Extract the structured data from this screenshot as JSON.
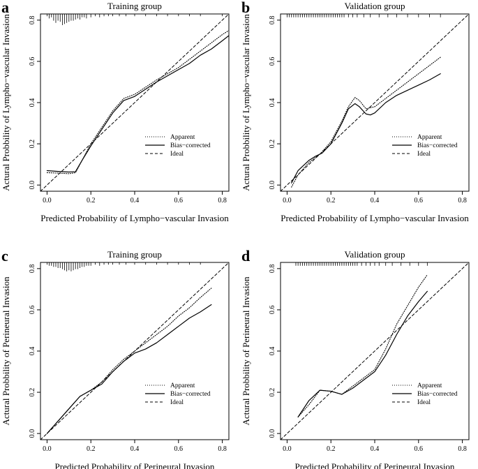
{
  "chart_data": [
    {
      "type": "line",
      "panel": "a",
      "title": "Training group",
      "xlabel": "Predicted Probability of Lympho−vascular Invasion",
      "ylabel": "Actural Probbility of Lympho−vascular Invasion",
      "xlim": [
        -0.03,
        0.83
      ],
      "ylim": [
        -0.03,
        0.83
      ],
      "xticks": [
        0.0,
        0.2,
        0.4,
        0.6,
        0.8
      ],
      "yticks": [
        0.0,
        0.2,
        0.4,
        0.6,
        0.8
      ],
      "xtick_labels": [
        "0.0",
        "0.2",
        "0.4",
        "0.6",
        "0.8"
      ],
      "ytick_labels": [
        "0.0",
        "0.2",
        "0.4",
        "0.6",
        "0.8"
      ],
      "legend": [
        "Apparent",
        "Bias−corrected",
        "Ideal"
      ],
      "legend_position": "bottom-right",
      "rug": {
        "side": "top",
        "ticks": [
          [
            0.0,
            2
          ],
          [
            0.01,
            4
          ],
          [
            0.02,
            3
          ],
          [
            0.03,
            6
          ],
          [
            0.04,
            8
          ],
          [
            0.05,
            6
          ],
          [
            0.06,
            7
          ],
          [
            0.07,
            10
          ],
          [
            0.08,
            9
          ],
          [
            0.09,
            8
          ],
          [
            0.1,
            7
          ],
          [
            0.11,
            6
          ],
          [
            0.12,
            6
          ],
          [
            0.13,
            5
          ],
          [
            0.14,
            4
          ],
          [
            0.15,
            5
          ],
          [
            0.16,
            3
          ],
          [
            0.17,
            3
          ],
          [
            0.18,
            4
          ],
          [
            0.2,
            3
          ],
          [
            0.22,
            2
          ],
          [
            0.24,
            3
          ],
          [
            0.26,
            2
          ],
          [
            0.28,
            2
          ],
          [
            0.3,
            2
          ],
          [
            0.33,
            2
          ],
          [
            0.36,
            2
          ],
          [
            0.4,
            2
          ],
          [
            0.45,
            2
          ],
          [
            0.5,
            2
          ],
          [
            0.55,
            2
          ],
          [
            0.6,
            2
          ],
          [
            0.65,
            2
          ],
          [
            0.7,
            2
          ],
          [
            0.8,
            2
          ]
        ]
      },
      "series": [
        {
          "name": "Apparent",
          "style": "dotted",
          "x": [
            0.0,
            0.05,
            0.1,
            0.13,
            0.16,
            0.2,
            0.25,
            0.3,
            0.35,
            0.4,
            0.45,
            0.5,
            0.55,
            0.6,
            0.65,
            0.7,
            0.75,
            0.8,
            0.83
          ],
          "y": [
            0.06,
            0.058,
            0.055,
            0.06,
            0.12,
            0.2,
            0.28,
            0.36,
            0.42,
            0.44,
            0.475,
            0.51,
            0.54,
            0.57,
            0.61,
            0.65,
            0.69,
            0.73,
            0.75
          ]
        },
        {
          "name": "Bias−corrected",
          "style": "solid",
          "x": [
            0.0,
            0.05,
            0.1,
            0.13,
            0.16,
            0.2,
            0.25,
            0.3,
            0.35,
            0.4,
            0.45,
            0.5,
            0.55,
            0.6,
            0.65,
            0.7,
            0.75,
            0.8,
            0.83
          ],
          "y": [
            0.07,
            0.066,
            0.063,
            0.065,
            0.12,
            0.19,
            0.27,
            0.35,
            0.41,
            0.43,
            0.465,
            0.5,
            0.53,
            0.56,
            0.59,
            0.63,
            0.66,
            0.7,
            0.725
          ]
        },
        {
          "name": "Ideal",
          "style": "dashed",
          "x": [
            -0.03,
            0.83
          ],
          "y": [
            -0.03,
            0.83
          ]
        }
      ]
    },
    {
      "type": "line",
      "panel": "b",
      "title": "Validation group",
      "xlabel": "Predicted Probability of Lympho−vascular Invasion",
      "ylabel": "Actural Probbility of Lympho−vascular Invasion",
      "xlim": [
        -0.03,
        0.83
      ],
      "ylim": [
        -0.03,
        0.83
      ],
      "xticks": [
        0.0,
        0.2,
        0.4,
        0.6,
        0.8
      ],
      "yticks": [
        0.0,
        0.2,
        0.4,
        0.6,
        0.8
      ],
      "xtick_labels": [
        "0.0",
        "0.2",
        "0.4",
        "0.6",
        "0.8"
      ],
      "ytick_labels": [
        "0.0",
        "0.2",
        "0.4",
        "0.6",
        "0.8"
      ],
      "legend": [
        "Apparent",
        "Bias−corrected",
        "Ideal"
      ],
      "legend_position": "bottom-right",
      "rug": {
        "side": "top",
        "ticks": [
          [
            0.0,
            3
          ],
          [
            0.01,
            3
          ],
          [
            0.02,
            3
          ],
          [
            0.03,
            3
          ],
          [
            0.04,
            3
          ],
          [
            0.05,
            3
          ],
          [
            0.06,
            3
          ],
          [
            0.07,
            3
          ],
          [
            0.08,
            3
          ],
          [
            0.09,
            3
          ],
          [
            0.1,
            3
          ],
          [
            0.11,
            3
          ],
          [
            0.12,
            3
          ],
          [
            0.13,
            3
          ],
          [
            0.14,
            3
          ],
          [
            0.15,
            3
          ],
          [
            0.16,
            3
          ],
          [
            0.17,
            3
          ],
          [
            0.18,
            3
          ],
          [
            0.19,
            3
          ],
          [
            0.2,
            3
          ],
          [
            0.21,
            3
          ],
          [
            0.22,
            3
          ],
          [
            0.23,
            3
          ],
          [
            0.24,
            3
          ],
          [
            0.25,
            3
          ],
          [
            0.26,
            3
          ],
          [
            0.28,
            3
          ],
          [
            0.3,
            3
          ],
          [
            0.32,
            3
          ],
          [
            0.35,
            3
          ],
          [
            0.38,
            3
          ],
          [
            0.42,
            3
          ],
          [
            0.46,
            3
          ],
          [
            0.5,
            3
          ],
          [
            0.55,
            3
          ],
          [
            0.6,
            3
          ],
          [
            0.65,
            3
          ],
          [
            0.7,
            3
          ]
        ]
      },
      "series": [
        {
          "name": "Apparent",
          "style": "dotted",
          "x": [
            0.02,
            0.05,
            0.1,
            0.15,
            0.2,
            0.25,
            0.28,
            0.31,
            0.33,
            0.36,
            0.4,
            0.45,
            0.5,
            0.55,
            0.6,
            0.65,
            0.7
          ],
          "y": [
            -0.01,
            0.05,
            0.11,
            0.15,
            0.21,
            0.31,
            0.38,
            0.425,
            0.41,
            0.37,
            0.38,
            0.42,
            0.46,
            0.5,
            0.54,
            0.58,
            0.62
          ]
        },
        {
          "name": "Bias−corrected",
          "style": "solid",
          "x": [
            0.02,
            0.05,
            0.1,
            0.13,
            0.16,
            0.2,
            0.25,
            0.28,
            0.31,
            0.33,
            0.36,
            0.38,
            0.4,
            0.45,
            0.5,
            0.55,
            0.6,
            0.65,
            0.7
          ],
          "y": [
            0.01,
            0.07,
            0.12,
            0.14,
            0.155,
            0.2,
            0.3,
            0.37,
            0.395,
            0.38,
            0.345,
            0.34,
            0.35,
            0.4,
            0.435,
            0.46,
            0.485,
            0.51,
            0.54
          ]
        },
        {
          "name": "Ideal",
          "style": "dashed",
          "x": [
            -0.03,
            0.83
          ],
          "y": [
            -0.03,
            0.83
          ]
        }
      ]
    },
    {
      "type": "line",
      "panel": "c",
      "title": "Training group",
      "xlabel": "Predicted Probability of Perineural Invasion",
      "ylabel": "Actural Probbility of Perineural Invasion",
      "xlim": [
        -0.03,
        0.83
      ],
      "ylim": [
        -0.03,
        0.83
      ],
      "xticks": [
        0.0,
        0.2,
        0.4,
        0.6,
        0.8
      ],
      "yticks": [
        0.0,
        0.2,
        0.4,
        0.6,
        0.8
      ],
      "xtick_labels": [
        "0.0",
        "0.2",
        "0.4",
        "0.6",
        "0.8"
      ],
      "ytick_labels": [
        "0.0",
        "0.2",
        "0.4",
        "0.6",
        "0.8"
      ],
      "legend": [
        "Apparent",
        "Bias−corrected",
        "Ideal"
      ],
      "legend_position": "bottom-right",
      "rug": {
        "side": "top",
        "ticks": [
          [
            0.0,
            2
          ],
          [
            0.01,
            3
          ],
          [
            0.02,
            3
          ],
          [
            0.03,
            4
          ],
          [
            0.04,
            4
          ],
          [
            0.05,
            5
          ],
          [
            0.06,
            5
          ],
          [
            0.07,
            6
          ],
          [
            0.08,
            7
          ],
          [
            0.09,
            8
          ],
          [
            0.1,
            7
          ],
          [
            0.11,
            8
          ],
          [
            0.12,
            7
          ],
          [
            0.13,
            6
          ],
          [
            0.14,
            6
          ],
          [
            0.15,
            5
          ],
          [
            0.16,
            4
          ],
          [
            0.17,
            4
          ],
          [
            0.18,
            3
          ],
          [
            0.19,
            3
          ],
          [
            0.2,
            3
          ],
          [
            0.22,
            2
          ],
          [
            0.24,
            3
          ],
          [
            0.26,
            2
          ],
          [
            0.28,
            2
          ],
          [
            0.3,
            2
          ],
          [
            0.33,
            2
          ],
          [
            0.36,
            2
          ],
          [
            0.4,
            2
          ],
          [
            0.45,
            2
          ],
          [
            0.5,
            2
          ],
          [
            0.55,
            2
          ],
          [
            0.6,
            2
          ],
          [
            0.65,
            2
          ],
          [
            0.7,
            2
          ]
        ]
      },
      "series": [
        {
          "name": "Apparent",
          "style": "dotted",
          "x": [
            0.0,
            0.05,
            0.1,
            0.15,
            0.2,
            0.25,
            0.3,
            0.35,
            0.4,
            0.45,
            0.5,
            0.55,
            0.6,
            0.65,
            0.7,
            0.75
          ],
          "y": [
            0.0,
            0.06,
            0.12,
            0.18,
            0.21,
            0.25,
            0.31,
            0.36,
            0.4,
            0.44,
            0.48,
            0.52,
            0.57,
            0.61,
            0.66,
            0.705
          ]
        },
        {
          "name": "Bias−corrected",
          "style": "solid",
          "x": [
            0.0,
            0.05,
            0.1,
            0.15,
            0.2,
            0.25,
            0.3,
            0.35,
            0.4,
            0.45,
            0.5,
            0.55,
            0.6,
            0.65,
            0.7,
            0.75
          ],
          "y": [
            0.0,
            0.06,
            0.12,
            0.18,
            0.21,
            0.24,
            0.3,
            0.35,
            0.39,
            0.41,
            0.44,
            0.48,
            0.52,
            0.56,
            0.59,
            0.625
          ]
        },
        {
          "name": "Ideal",
          "style": "dashed",
          "x": [
            -0.03,
            0.83
          ],
          "y": [
            -0.03,
            0.83
          ]
        }
      ]
    },
    {
      "type": "line",
      "panel": "d",
      "title": "Validation group",
      "xlabel": "Predicted Probability of Perineural Invasion",
      "ylabel": "Actural Probbility of Perineural Invasion",
      "xlim": [
        -0.03,
        0.83
      ],
      "ylim": [
        -0.03,
        0.83
      ],
      "xticks": [
        0.0,
        0.2,
        0.4,
        0.6,
        0.8
      ],
      "yticks": [
        0.0,
        0.2,
        0.4,
        0.6,
        0.8
      ],
      "xtick_labels": [
        "0.0",
        "0.2",
        "0.4",
        "0.6",
        "0.8"
      ],
      "ytick_labels": [
        "0.0",
        "0.2",
        "0.4",
        "0.6",
        "0.8"
      ],
      "legend": [
        "Apparent",
        "Bias−corrected",
        "Ideal"
      ],
      "legend_position": "bottom-right",
      "rug": {
        "side": "top",
        "ticks": [
          [
            0.04,
            3
          ],
          [
            0.05,
            3
          ],
          [
            0.06,
            3
          ],
          [
            0.07,
            3
          ],
          [
            0.08,
            3
          ],
          [
            0.09,
            3
          ],
          [
            0.1,
            3
          ],
          [
            0.11,
            3
          ],
          [
            0.12,
            3
          ],
          [
            0.13,
            3
          ],
          [
            0.14,
            3
          ],
          [
            0.15,
            3
          ],
          [
            0.16,
            3
          ],
          [
            0.17,
            3
          ],
          [
            0.18,
            3
          ],
          [
            0.19,
            3
          ],
          [
            0.2,
            3
          ],
          [
            0.21,
            3
          ],
          [
            0.22,
            3
          ],
          [
            0.23,
            3
          ],
          [
            0.24,
            3
          ],
          [
            0.25,
            3
          ],
          [
            0.26,
            3
          ],
          [
            0.27,
            3
          ],
          [
            0.28,
            3
          ],
          [
            0.29,
            3
          ],
          [
            0.3,
            3
          ],
          [
            0.31,
            3
          ],
          [
            0.32,
            3
          ],
          [
            0.34,
            3
          ],
          [
            0.36,
            3
          ],
          [
            0.38,
            3
          ],
          [
            0.4,
            3
          ],
          [
            0.42,
            3
          ],
          [
            0.45,
            3
          ],
          [
            0.48,
            3
          ],
          [
            0.52,
            3
          ],
          [
            0.56,
            3
          ],
          [
            0.6,
            3
          ],
          [
            0.64,
            3
          ]
        ]
      },
      "series": [
        {
          "name": "Apparent",
          "style": "dotted",
          "x": [
            0.05,
            0.1,
            0.15,
            0.2,
            0.25,
            0.3,
            0.35,
            0.4,
            0.45,
            0.5,
            0.55,
            0.6,
            0.64
          ],
          "y": [
            0.08,
            0.14,
            0.21,
            0.205,
            0.19,
            0.23,
            0.27,
            0.31,
            0.41,
            0.53,
            0.62,
            0.71,
            0.77
          ]
        },
        {
          "name": "Bias−corrected",
          "style": "solid",
          "x": [
            0.05,
            0.1,
            0.15,
            0.2,
            0.25,
            0.3,
            0.35,
            0.4,
            0.45,
            0.5,
            0.55,
            0.6,
            0.64
          ],
          "y": [
            0.08,
            0.16,
            0.21,
            0.205,
            0.19,
            0.22,
            0.26,
            0.3,
            0.38,
            0.48,
            0.57,
            0.64,
            0.69
          ]
        },
        {
          "name": "Ideal",
          "style": "dashed",
          "x": [
            -0.03,
            0.83
          ],
          "y": [
            -0.03,
            0.83
          ]
        }
      ]
    }
  ]
}
